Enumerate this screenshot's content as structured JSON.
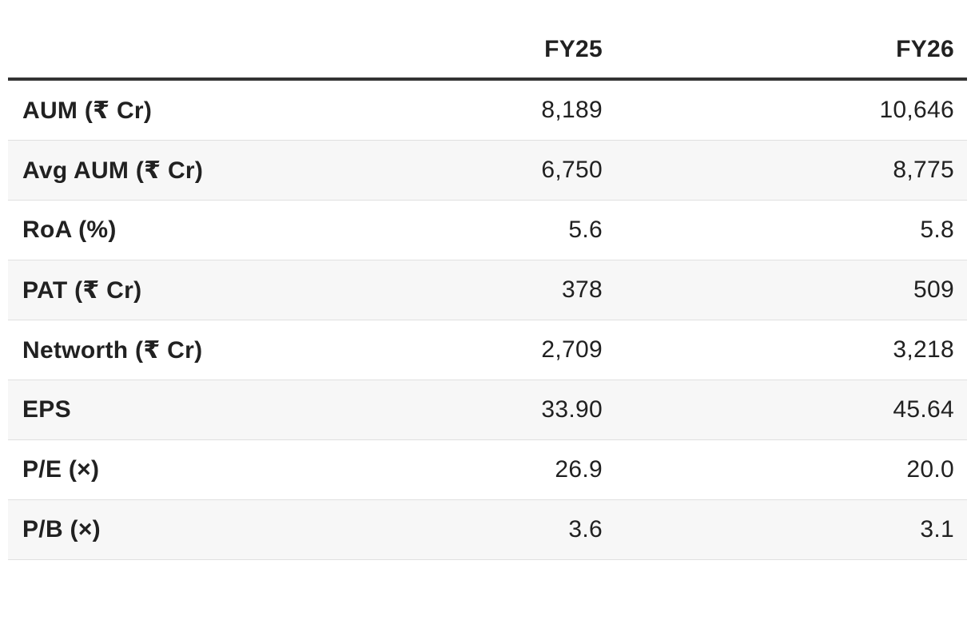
{
  "table": {
    "columns": [
      "",
      "FY25",
      "FY26"
    ],
    "rows": [
      {
        "label": "AUM (₹ Cr)",
        "fy25": "8,189",
        "fy26": "10,646"
      },
      {
        "label": "Avg AUM (₹ Cr)",
        "fy25": "6,750",
        "fy26": "8,775"
      },
      {
        "label": "RoA (%)",
        "fy25": "5.6",
        "fy26": "5.8"
      },
      {
        "label": "PAT (₹ Cr)",
        "fy25": "378",
        "fy26": "509"
      },
      {
        "label": "Networth (₹ Cr)",
        "fy25": "2,709",
        "fy26": "3,218"
      },
      {
        "label": "EPS",
        "fy25": "33.90",
        "fy26": "45.64"
      },
      {
        "label": "P/E (×)",
        "fy25": "26.9",
        "fy26": "20.0"
      },
      {
        "label": "P/B (×)",
        "fy25": "3.6",
        "fy26": "3.1"
      }
    ]
  },
  "colors": {
    "text": "#212121",
    "header_rule": "#333333",
    "row_divider": "#e0e0e0",
    "stripe": "#f7f7f7",
    "background": "#ffffff"
  }
}
